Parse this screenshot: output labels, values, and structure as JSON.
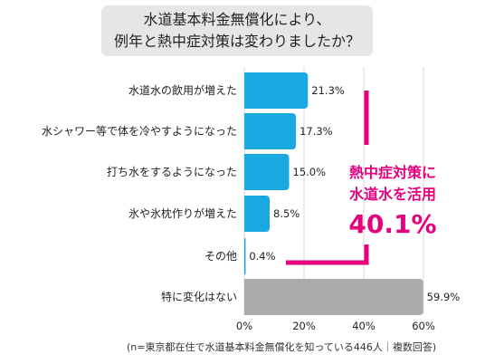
{
  "title_lines": [
    "水道基本料金無償化により、",
    "例年と熱中症対策は変わりましたか？"
  ],
  "chart_data": {
    "type": "bar",
    "orientation": "horizontal",
    "categories": [
      "水道水の飲用が増えた",
      "水シャワー等で体を冷やすようになった",
      "打ち水をするようになった",
      "氷や氷枕作りが増えた",
      "その他",
      "特に変化はない"
    ],
    "values": [
      21.3,
      17.3,
      15.0,
      8.5,
      0.4,
      59.9
    ],
    "value_labels": [
      "21.3%",
      "17.3%",
      "15.0%",
      "8.5%",
      "0.4%",
      "59.9%"
    ],
    "xlim": [
      0,
      60
    ],
    "x_ticks": [
      0,
      20,
      40,
      60
    ],
    "x_tick_labels": [
      "0%",
      "20%",
      "40%",
      "60%"
    ],
    "grid": "vertical",
    "colors": {
      "bar": "#1aa8e0",
      "bar_last": "#ababab",
      "grid": "#d9d9d9",
      "annotation": "#e6007e"
    }
  },
  "annotation": {
    "lines": [
      "熱中症対策に",
      "水道水を活用"
    ],
    "value": "40.1%"
  },
  "footnote": "(n=東京都在住で水道基本料金無償化を知っている446人｜複数回答)"
}
